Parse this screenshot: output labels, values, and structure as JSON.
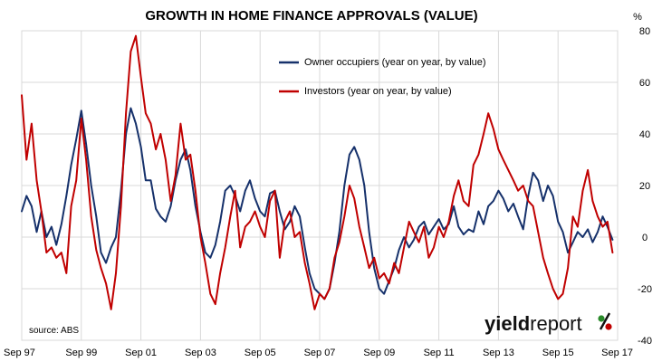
{
  "chart_data": {
    "type": "line",
    "title": "GROWTH IN HOME FINANCE APPROVALS (VALUE)",
    "y_unit": "%",
    "ylim": [
      -40,
      80
    ],
    "y_ticks": [
      "80",
      "60",
      "40",
      "20",
      "0",
      "-20",
      "-40"
    ],
    "x_ticks": [
      "Sep 97",
      "Sep 99",
      "Sep 01",
      "Sep 03",
      "Sep 05",
      "Sep 07",
      "Sep 09",
      "Sep 11",
      "Sep 13",
      "Sep 15",
      "Sep 17"
    ],
    "xlim": [
      1997.67,
      2017.67
    ],
    "grid": "horizontal and vertical",
    "legend_position": "top-center",
    "source": "source: ABS",
    "brand": {
      "main": "yield",
      "sub": "report",
      "symbol": "%"
    },
    "series": [
      {
        "name": "Owner occupiers  (year on year, by value)",
        "color": "#16316b",
        "points": [
          [
            1997.67,
            10
          ],
          [
            1997.83,
            16
          ],
          [
            1998.0,
            12
          ],
          [
            1998.17,
            2
          ],
          [
            1998.33,
            10
          ],
          [
            1998.5,
            0
          ],
          [
            1998.67,
            4
          ],
          [
            1998.83,
            -3
          ],
          [
            1999.0,
            5
          ],
          [
            1999.17,
            16
          ],
          [
            1999.33,
            28
          ],
          [
            1999.5,
            38
          ],
          [
            1999.67,
            49
          ],
          [
            1999.83,
            36
          ],
          [
            2000.0,
            20
          ],
          [
            2000.17,
            8
          ],
          [
            2000.33,
            -6
          ],
          [
            2000.5,
            -10
          ],
          [
            2000.67,
            -4
          ],
          [
            2000.83,
            0
          ],
          [
            2001.0,
            18
          ],
          [
            2001.17,
            40
          ],
          [
            2001.33,
            50
          ],
          [
            2001.5,
            44
          ],
          [
            2001.67,
            35
          ],
          [
            2001.83,
            22
          ],
          [
            2002.0,
            22
          ],
          [
            2002.17,
            11
          ],
          [
            2002.33,
            8
          ],
          [
            2002.5,
            6
          ],
          [
            2002.67,
            12
          ],
          [
            2002.83,
            22
          ],
          [
            2003.0,
            30
          ],
          [
            2003.17,
            34
          ],
          [
            2003.33,
            26
          ],
          [
            2003.5,
            12
          ],
          [
            2003.67,
            2
          ],
          [
            2003.83,
            -6
          ],
          [
            2004.0,
            -8
          ],
          [
            2004.17,
            -3
          ],
          [
            2004.33,
            6
          ],
          [
            2004.5,
            18
          ],
          [
            2004.67,
            20
          ],
          [
            2004.83,
            16
          ],
          [
            2005.0,
            10
          ],
          [
            2005.17,
            18
          ],
          [
            2005.33,
            22
          ],
          [
            2005.5,
            15
          ],
          [
            2005.67,
            10
          ],
          [
            2005.83,
            8
          ],
          [
            2006.0,
            17
          ],
          [
            2006.17,
            18
          ],
          [
            2006.33,
            10
          ],
          [
            2006.5,
            3
          ],
          [
            2006.67,
            6
          ],
          [
            2006.83,
            12
          ],
          [
            2007.0,
            8
          ],
          [
            2007.17,
            -4
          ],
          [
            2007.33,
            -14
          ],
          [
            2007.5,
            -20
          ],
          [
            2007.67,
            -22
          ],
          [
            2007.83,
            -24
          ],
          [
            2008.0,
            -20
          ],
          [
            2008.17,
            -10
          ],
          [
            2008.33,
            2
          ],
          [
            2008.5,
            20
          ],
          [
            2008.67,
            32
          ],
          [
            2008.83,
            35
          ],
          [
            2009.0,
            30
          ],
          [
            2009.17,
            20
          ],
          [
            2009.33,
            2
          ],
          [
            2009.5,
            -12
          ],
          [
            2009.67,
            -20
          ],
          [
            2009.83,
            -22
          ],
          [
            2010.0,
            -17
          ],
          [
            2010.17,
            -12
          ],
          [
            2010.33,
            -5
          ],
          [
            2010.5,
            0
          ],
          [
            2010.67,
            -4
          ],
          [
            2010.83,
            -1
          ],
          [
            2011.0,
            4
          ],
          [
            2011.17,
            6
          ],
          [
            2011.33,
            1
          ],
          [
            2011.5,
            4
          ],
          [
            2011.67,
            7
          ],
          [
            2011.83,
            3
          ],
          [
            2012.0,
            5
          ],
          [
            2012.17,
            12
          ],
          [
            2012.33,
            4
          ],
          [
            2012.5,
            1
          ],
          [
            2012.67,
            3
          ],
          [
            2012.83,
            2
          ],
          [
            2013.0,
            10
          ],
          [
            2013.17,
            5
          ],
          [
            2013.33,
            12
          ],
          [
            2013.5,
            14
          ],
          [
            2013.67,
            18
          ],
          [
            2013.83,
            15
          ],
          [
            2014.0,
            10
          ],
          [
            2014.17,
            13
          ],
          [
            2014.33,
            8
          ],
          [
            2014.5,
            3
          ],
          [
            2014.67,
            16
          ],
          [
            2014.83,
            25
          ],
          [
            2015.0,
            22
          ],
          [
            2015.17,
            14
          ],
          [
            2015.33,
            20
          ],
          [
            2015.5,
            16
          ],
          [
            2015.67,
            6
          ],
          [
            2015.83,
            2
          ],
          [
            2016.0,
            -6
          ],
          [
            2016.17,
            -2
          ],
          [
            2016.33,
            2
          ],
          [
            2016.5,
            0
          ],
          [
            2016.67,
            3
          ],
          [
            2016.83,
            -2
          ],
          [
            2017.0,
            2
          ],
          [
            2017.17,
            8
          ],
          [
            2017.33,
            4
          ],
          [
            2017.5,
            -1
          ]
        ]
      },
      {
        "name": "Investors (year on year, by value)",
        "color": "#c00000",
        "points": [
          [
            1997.67,
            55
          ],
          [
            1997.83,
            30
          ],
          [
            1998.0,
            44
          ],
          [
            1998.17,
            22
          ],
          [
            1998.33,
            10
          ],
          [
            1998.5,
            -6
          ],
          [
            1998.67,
            -4
          ],
          [
            1998.83,
            -8
          ],
          [
            1999.0,
            -6
          ],
          [
            1999.17,
            -14
          ],
          [
            1999.33,
            12
          ],
          [
            1999.5,
            22
          ],
          [
            1999.67,
            46
          ],
          [
            1999.83,
            30
          ],
          [
            2000.0,
            8
          ],
          [
            2000.17,
            -5
          ],
          [
            2000.33,
            -12
          ],
          [
            2000.5,
            -18
          ],
          [
            2000.67,
            -28
          ],
          [
            2000.83,
            -14
          ],
          [
            2001.0,
            12
          ],
          [
            2001.17,
            48
          ],
          [
            2001.33,
            72
          ],
          [
            2001.5,
            78
          ],
          [
            2001.67,
            62
          ],
          [
            2001.83,
            48
          ],
          [
            2002.0,
            44
          ],
          [
            2002.17,
            34
          ],
          [
            2002.33,
            40
          ],
          [
            2002.5,
            30
          ],
          [
            2002.67,
            14
          ],
          [
            2002.83,
            24
          ],
          [
            2003.0,
            44
          ],
          [
            2003.17,
            30
          ],
          [
            2003.33,
            32
          ],
          [
            2003.5,
            18
          ],
          [
            2003.67,
            0
          ],
          [
            2003.83,
            -10
          ],
          [
            2004.0,
            -22
          ],
          [
            2004.17,
            -26
          ],
          [
            2004.33,
            -14
          ],
          [
            2004.5,
            -4
          ],
          [
            2004.67,
            8
          ],
          [
            2004.83,
            18
          ],
          [
            2005.0,
            -4
          ],
          [
            2005.17,
            4
          ],
          [
            2005.33,
            6
          ],
          [
            2005.5,
            10
          ],
          [
            2005.67,
            4
          ],
          [
            2005.83,
            0
          ],
          [
            2006.0,
            14
          ],
          [
            2006.17,
            18
          ],
          [
            2006.33,
            -8
          ],
          [
            2006.5,
            6
          ],
          [
            2006.67,
            10
          ],
          [
            2006.83,
            0
          ],
          [
            2007.0,
            2
          ],
          [
            2007.17,
            -10
          ],
          [
            2007.33,
            -18
          ],
          [
            2007.5,
            -28
          ],
          [
            2007.67,
            -22
          ],
          [
            2007.83,
            -24
          ],
          [
            2008.0,
            -20
          ],
          [
            2008.17,
            -8
          ],
          [
            2008.33,
            -2
          ],
          [
            2008.5,
            8
          ],
          [
            2008.67,
            20
          ],
          [
            2008.83,
            15
          ],
          [
            2009.0,
            4
          ],
          [
            2009.17,
            -4
          ],
          [
            2009.33,
            -12
          ],
          [
            2009.5,
            -8
          ],
          [
            2009.67,
            -16
          ],
          [
            2009.83,
            -14
          ],
          [
            2010.0,
            -18
          ],
          [
            2010.17,
            -10
          ],
          [
            2010.33,
            -14
          ],
          [
            2010.5,
            -4
          ],
          [
            2010.67,
            6
          ],
          [
            2010.83,
            2
          ],
          [
            2011.0,
            -2
          ],
          [
            2011.17,
            4
          ],
          [
            2011.33,
            -8
          ],
          [
            2011.5,
            -4
          ],
          [
            2011.67,
            4
          ],
          [
            2011.83,
            0
          ],
          [
            2012.0,
            6
          ],
          [
            2012.17,
            16
          ],
          [
            2012.33,
            22
          ],
          [
            2012.5,
            14
          ],
          [
            2012.67,
            12
          ],
          [
            2012.83,
            28
          ],
          [
            2013.0,
            32
          ],
          [
            2013.17,
            40
          ],
          [
            2013.33,
            48
          ],
          [
            2013.5,
            42
          ],
          [
            2013.67,
            34
          ],
          [
            2013.83,
            30
          ],
          [
            2014.0,
            26
          ],
          [
            2014.17,
            22
          ],
          [
            2014.33,
            18
          ],
          [
            2014.5,
            20
          ],
          [
            2014.67,
            14
          ],
          [
            2014.83,
            12
          ],
          [
            2015.0,
            2
          ],
          [
            2015.17,
            -8
          ],
          [
            2015.33,
            -14
          ],
          [
            2015.5,
            -20
          ],
          [
            2015.67,
            -24
          ],
          [
            2015.83,
            -22
          ],
          [
            2016.0,
            -12
          ],
          [
            2016.17,
            8
          ],
          [
            2016.33,
            4
          ],
          [
            2016.5,
            18
          ],
          [
            2016.67,
            26
          ],
          [
            2016.83,
            14
          ],
          [
            2017.0,
            8
          ],
          [
            2017.17,
            4
          ],
          [
            2017.33,
            6
          ],
          [
            2017.5,
            -6
          ]
        ]
      }
    ]
  }
}
